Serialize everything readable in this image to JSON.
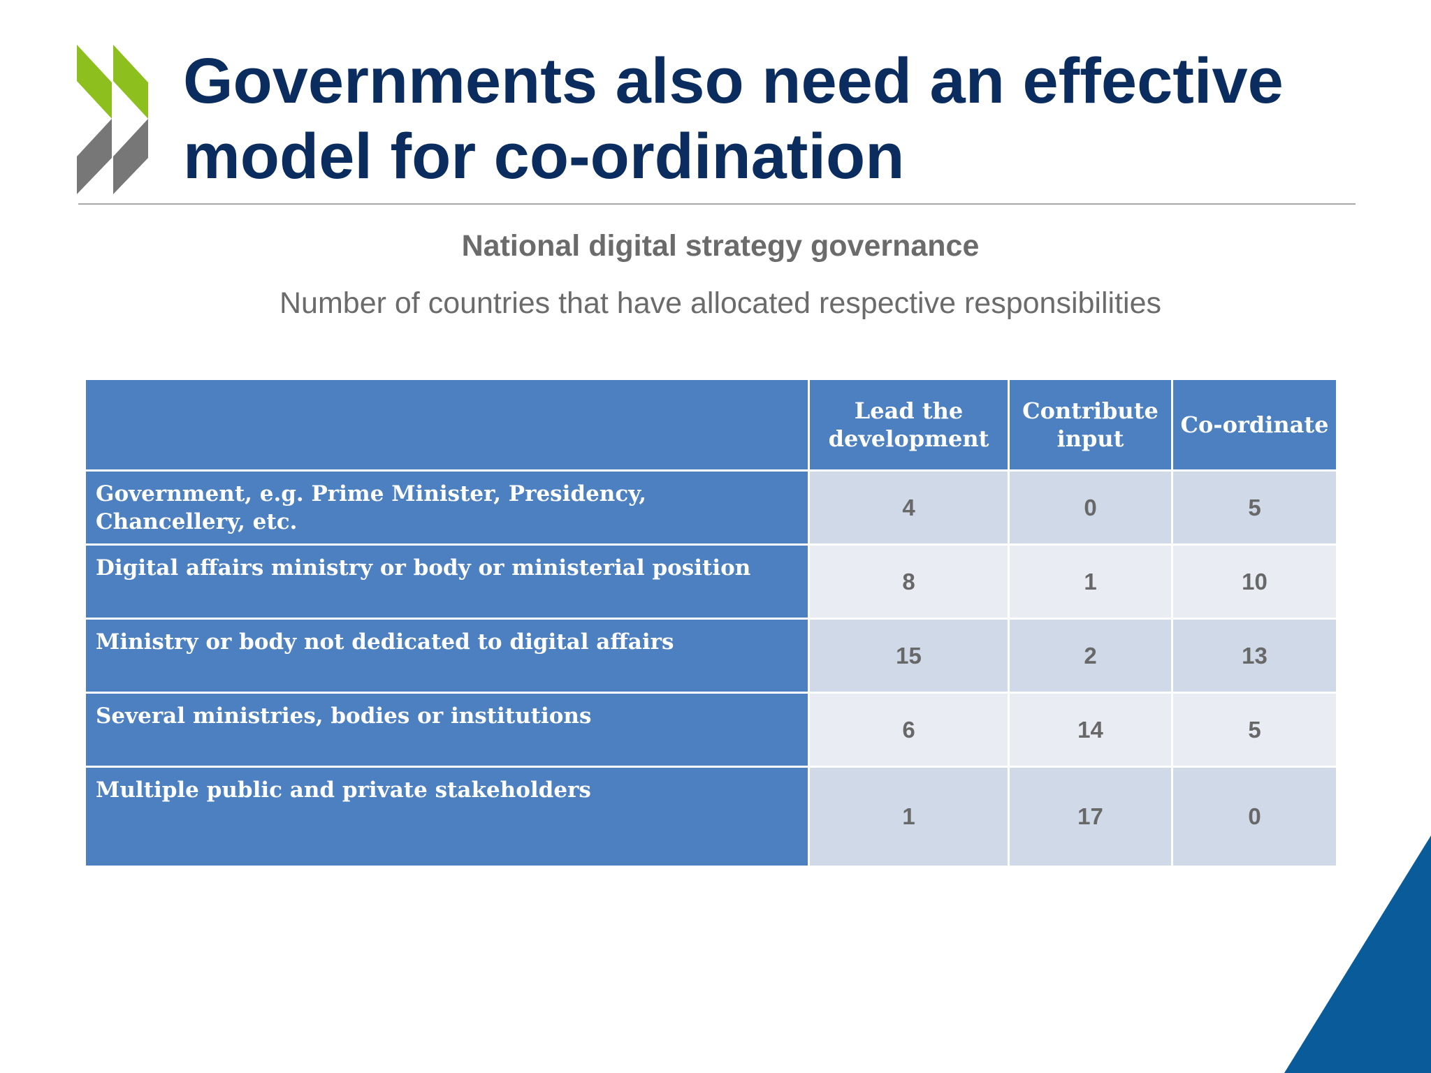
{
  "slide": {
    "title": "Governments also need an effective model for co-ordination",
    "subtitle": "National digital strategy governance",
    "caption": "Number of countries that have allocated respective responsibilities"
  },
  "colors": {
    "title": "#0b2c5e",
    "table_header": "#4d80c0",
    "logo_green": "#8dbf1e",
    "logo_gray": "#777777",
    "corner_blue": "#0a5b99"
  },
  "table": {
    "columns": [
      "Lead the development",
      "Contribute input",
      "Co-ordinate"
    ],
    "rows": [
      {
        "label": "Government, e.g. Prime Minister, Presidency, Chancellery,  etc.",
        "values": [
          "4",
          "0",
          "5"
        ]
      },
      {
        "label": "Digital affairs ministry or body or ministerial position",
        "values": [
          "8",
          "1",
          "10"
        ]
      },
      {
        "label": "Ministry or body not dedicated to digital affairs",
        "values": [
          "15",
          "2",
          "13"
        ]
      },
      {
        "label": "Several ministries, bodies or institutions",
        "values": [
          "6",
          "14",
          "5"
        ]
      },
      {
        "label": "Multiple public and private stakeholders",
        "values": [
          "1",
          "17",
          "0"
        ]
      }
    ]
  }
}
